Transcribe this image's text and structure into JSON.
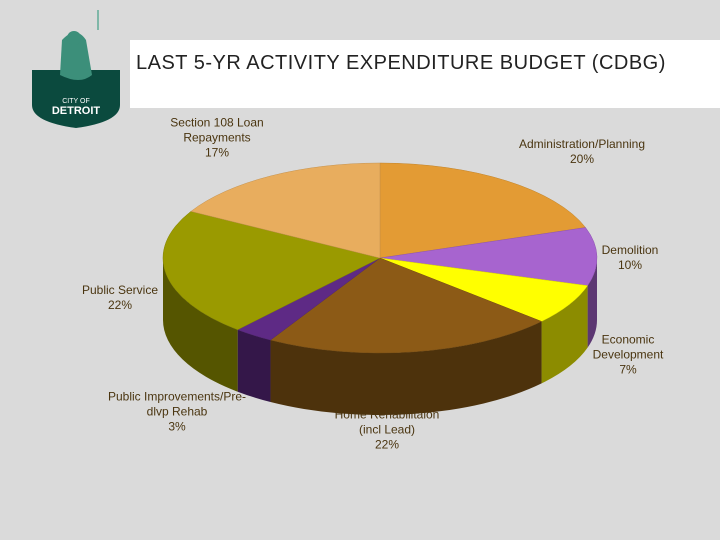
{
  "logo": {
    "line1": "CITY OF",
    "line2": "DETROIT"
  },
  "chart_data": {
    "type": "pie3d",
    "title": "LAST 5-YR ACTIVITY EXPENDITURE BUDGET (CDBG)",
    "categories": [
      "Administration/Planning",
      "Demolition",
      "Economic Development",
      "Home Rehabilitaion (incl Lead)",
      "Public Improvements/Pre-dlvp Rehab",
      "Public Service",
      "Section 108 Loan Repayments"
    ],
    "values": [
      20,
      10,
      7,
      22,
      3,
      22,
      17
    ],
    "value_labels": [
      "20%",
      "10%",
      "7%",
      "22%",
      "3%",
      "22%",
      "17%"
    ],
    "colors": [
      "#e39b34",
      "#a764cf",
      "#ffff00",
      "#8c5a16",
      "#5e2a85",
      "#9a9a00",
      "#e8ad5e"
    ]
  }
}
